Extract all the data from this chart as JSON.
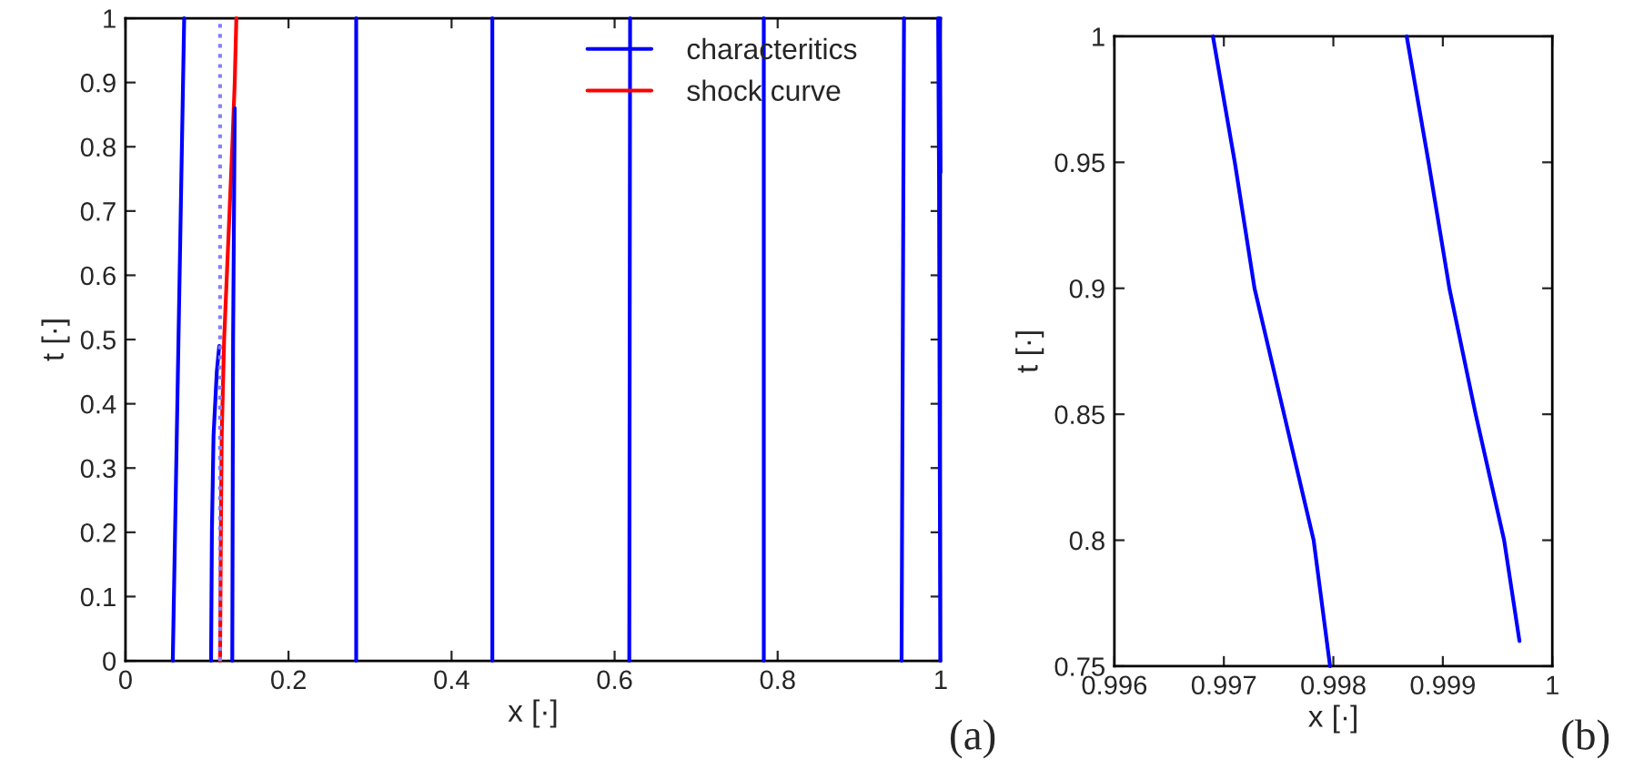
{
  "chart_data": [
    {
      "type": "line",
      "xlabel": "x [·]",
      "ylabel": "t [·]",
      "annotations": [
        "(a)"
      ],
      "xlim": [
        0,
        1
      ],
      "ylim": [
        0,
        1
      ],
      "xticks": [
        0,
        0.2,
        0.4,
        0.6,
        0.8,
        1
      ],
      "yticks": [
        0,
        0.1,
        0.2,
        0.3,
        0.4,
        0.5,
        0.6,
        0.7,
        0.8,
        0.9,
        1
      ],
      "grid": false,
      "legend": "top right",
      "series": [
        {
          "name": "characteritics",
          "color": "#0000ff",
          "x": [
            0.058,
            0.072
          ],
          "values": [
            0,
            1
          ]
        },
        {
          "name": "shock curve",
          "color": "#ff0000",
          "x": [
            0.116,
            0.117,
            0.118,
            0.121,
            0.126,
            0.131,
            0.134,
            0.136
          ],
          "values": [
            0,
            0.2,
            0.35,
            0.5,
            0.65,
            0.8,
            0.9,
            1
          ]
        },
        {
          "color": "#0000ff",
          "x": [
            0.105,
            0.106,
            0.108,
            0.112,
            0.115
          ],
          "values": [
            0,
            0.2,
            0.35,
            0.45,
            0.49
          ]
        },
        {
          "color": "#8080ff",
          "line_style": "dotted",
          "x": [
            0.116,
            0.116
          ],
          "values": [
            0,
            1
          ]
        },
        {
          "color": "#0000ff",
          "x": [
            0.131,
            0.132,
            0.134
          ],
          "values": [
            0,
            0.5,
            0.86
          ]
        },
        {
          "color": "#0000ff",
          "x": [
            0.283,
            0.283
          ],
          "values": [
            0,
            1
          ]
        },
        {
          "color": "#0000ff",
          "x": [
            0.45,
            0.45
          ],
          "values": [
            0,
            1
          ]
        },
        {
          "color": "#0000ff",
          "x": [
            0.618,
            0.619
          ],
          "values": [
            0,
            1
          ]
        },
        {
          "color": "#0000ff",
          "x": [
            0.783,
            0.783
          ],
          "values": [
            0,
            1
          ]
        },
        {
          "color": "#0000ff",
          "x": [
            0.952,
            0.955
          ],
          "values": [
            0,
            1
          ]
        },
        {
          "color": "#0000ff",
          "x": [
            0.9995,
            0.99797,
            0.9969
          ],
          "values": [
            0,
            0.75,
            1
          ]
        },
        {
          "color": "#0000ff",
          "x": [
            0.9997,
            0.99867
          ],
          "values": [
            0.76,
            1
          ]
        }
      ]
    },
    {
      "type": "line",
      "xlabel": "x [·]",
      "ylabel": "t [·]",
      "annotations": [
        "(b)"
      ],
      "xlim": [
        0.996,
        1
      ],
      "ylim": [
        0.75,
        1
      ],
      "xticks": [
        0.996,
        0.997,
        0.998,
        0.999,
        1
      ],
      "yticks": [
        0.75,
        0.8,
        0.85,
        0.9,
        0.95,
        1
      ],
      "grid": false,
      "series": [
        {
          "color": "#0000ff",
          "x": [
            0.99797,
            0.99782,
            0.99755,
            0.99728,
            0.9971,
            0.9969
          ],
          "values": [
            0.75,
            0.8,
            0.85,
            0.9,
            0.95,
            1
          ]
        },
        {
          "color": "#0000ff",
          "x": [
            0.9997,
            0.99956,
            0.9993,
            0.99906,
            0.99887,
            0.99867
          ],
          "values": [
            0.76,
            0.8,
            0.85,
            0.9,
            0.95,
            1
          ]
        }
      ]
    }
  ]
}
